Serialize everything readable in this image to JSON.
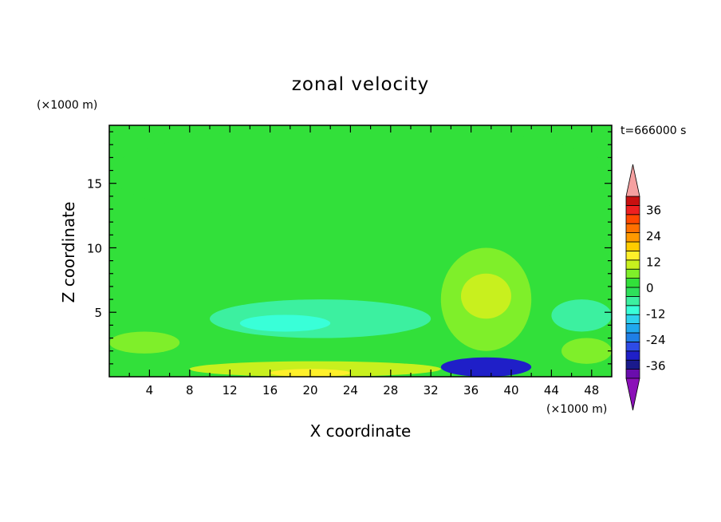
{
  "chart_data": {
    "type": "heatmap",
    "title": "zonal velocity",
    "xlabel": "X coordinate",
    "ylabel": "Z coordinate",
    "x_unit": "(×1000 m)",
    "y_unit": "(×1000 m)",
    "time_label": "t=666000 s",
    "xlim": [
      0,
      50
    ],
    "ylim": [
      0,
      19.5
    ],
    "x_ticks": [
      4,
      8,
      12,
      16,
      20,
      24,
      28,
      32,
      36,
      40,
      44,
      48
    ],
    "y_ticks": [
      5,
      10,
      15
    ],
    "colorbar": {
      "tick_labels": [
        "36",
        "24",
        "12",
        "0",
        "-12",
        "-24",
        "-36"
      ],
      "tick_values": [
        36,
        24,
        12,
        0,
        -12,
        -24,
        -36
      ],
      "range": [
        -42,
        42
      ],
      "level_colors": [
        "#6a0dad",
        "#1a1a8c",
        "#1f1fc8",
        "#2e4be6",
        "#1f7fe6",
        "#20a8ee",
        "#2ed2ee",
        "#39ffd8",
        "#3cf0a0",
        "#2ee05a",
        "#32e03a",
        "#7fef2a",
        "#c8f01e",
        "#fff02a",
        "#ffcc00",
        "#ff9900",
        "#ff7000",
        "#ff4800",
        "#ee2020",
        "#c81010"
      ],
      "over_color": "#f5a0a0",
      "under_color": "#8b10b8"
    },
    "background_level": 0,
    "features": [
      {
        "label": "upper band",
        "x": [
          0,
          50
        ],
        "z": [
          12,
          19.5
        ],
        "value": 0
      },
      {
        "label": "surface jet",
        "x": [
          8,
          33
        ],
        "z": [
          0,
          1.2
        ],
        "value": 10
      },
      {
        "label": "core",
        "x": [
          16,
          24
        ],
        "z": [
          0,
          0.6
        ],
        "value": 14
      },
      {
        "label": "near-surface layer",
        "x": [
          0,
          7
        ],
        "z": [
          1.8,
          3.5
        ],
        "value": 5
      },
      {
        "label": "negative lobe",
        "x": [
          10,
          32
        ],
        "z": [
          3,
          6
        ],
        "value": -8
      },
      {
        "label": "negative core",
        "x": [
          13,
          22
        ],
        "z": [
          3.5,
          4.8
        ],
        "value": -12
      },
      {
        "label": "positive plume",
        "x": [
          33,
          42
        ],
        "z": [
          2,
          10
        ],
        "value": 6
      },
      {
        "label": "plume core",
        "x": [
          35,
          40
        ],
        "z": [
          4.5,
          8
        ],
        "value": 10
      },
      {
        "label": "negative jet",
        "x": [
          33,
          42
        ],
        "z": [
          0,
          1.5
        ],
        "value": -30
      },
      {
        "label": "right negative",
        "x": [
          44,
          50
        ],
        "z": [
          3.5,
          6
        ],
        "value": -8
      },
      {
        "label": "right positive",
        "x": [
          45,
          50
        ],
        "z": [
          1,
          3
        ],
        "value": 6
      }
    ]
  }
}
